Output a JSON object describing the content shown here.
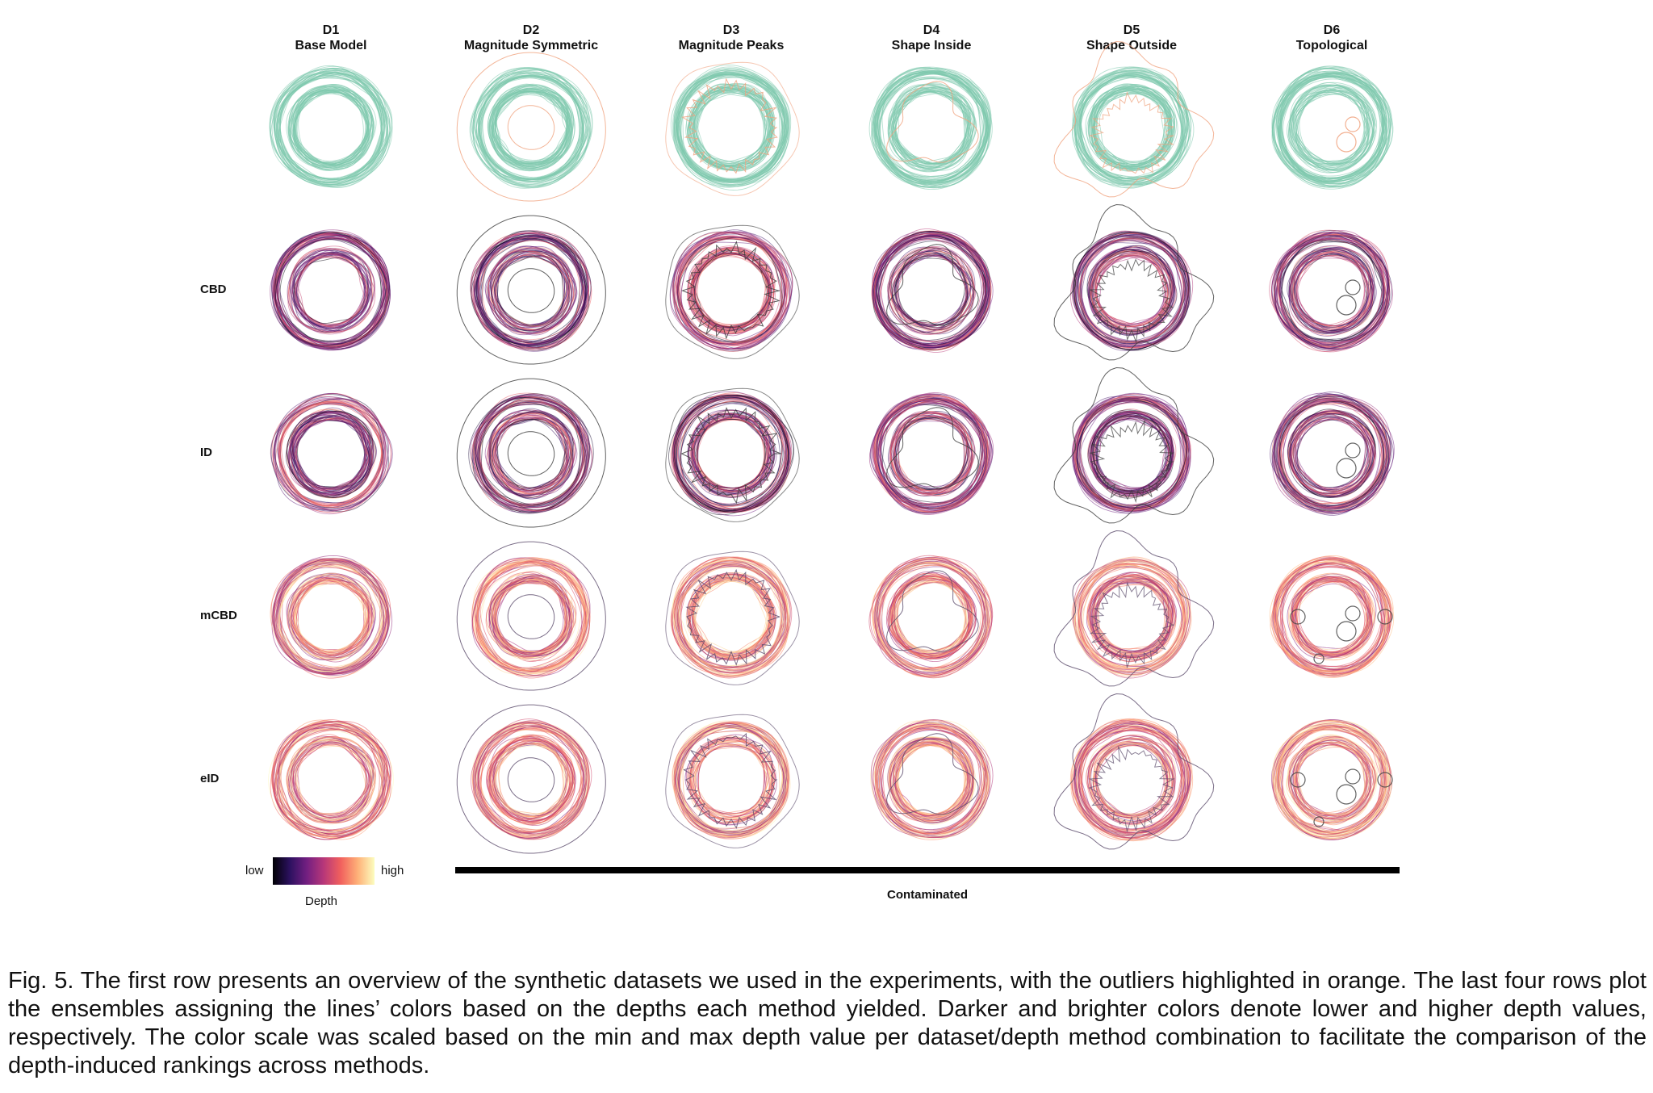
{
  "columns": [
    {
      "id": "D1",
      "name": "Base Model"
    },
    {
      "id": "D2",
      "name": "Magnitude Symmetric"
    },
    {
      "id": "D3",
      "name": "Magnitude Peaks"
    },
    {
      "id": "D4",
      "name": "Shape Inside"
    },
    {
      "id": "D5",
      "name": "Shape Outside"
    },
    {
      "id": "D6",
      "name": "Topological"
    }
  ],
  "rows": [
    {
      "label": "",
      "style": "overview"
    },
    {
      "label": "CBD",
      "style": "dark"
    },
    {
      "label": "ID",
      "style": "dark"
    },
    {
      "label": "mCBD",
      "style": "bright"
    },
    {
      "label": "eID",
      "style": "bright"
    }
  ],
  "legend": {
    "low": "low",
    "high": "high",
    "title": "Depth",
    "colormap": [
      "#000004",
      "#2c115f",
      "#721f81",
      "#b73779",
      "#f1605d",
      "#feb078",
      "#fcfdbf"
    ]
  },
  "contaminated_label": "Contaminated",
  "colors": {
    "inlier": "#7ec8ad",
    "outlier": "#f0a27e",
    "outlier_depth": "#3a3a3a"
  },
  "caption": "Fig. 5. The first row presents an overview of the synthetic datasets we used in the experiments, with the outliers highlighted in orange. The last four rows plot the ensembles assigning the lines’ colors based on the depths each method yielded. Darker and brighter colors denote lower and higher depth values, respectively. The color scale was scaled based on the min and max depth value per dataset/depth method combination to facilitate the comparison of the depth-induced rankings across methods."
}
